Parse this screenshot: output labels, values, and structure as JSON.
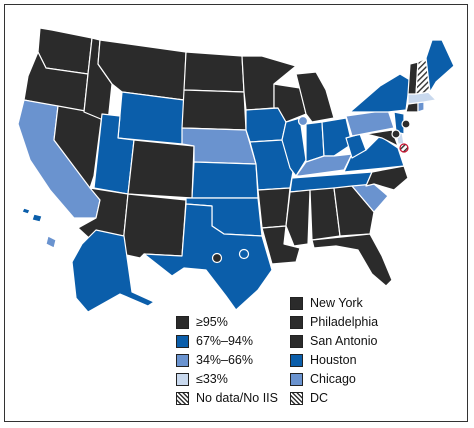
{
  "colors": {
    "ge95": "#2b2b2b",
    "c67_94": "#0b5eaa",
    "c34_66": "#6a93cf",
    "le33": "#c9d9ee",
    "nodata": "hatch",
    "border": "#ffffff"
  },
  "legend_left": [
    {
      "label": "≥95%",
      "color": "#2b2b2b",
      "icon": "dark-square-icon"
    },
    {
      "label": "67%–94%",
      "color": "#0b5eaa",
      "icon": "blue-square-icon"
    },
    {
      "label": "34%–66%",
      "color": "#6a93cf",
      "icon": "medium-blue-square-icon"
    },
    {
      "label": "≤33%",
      "color": "#c9d9ee",
      "icon": "light-blue-square-icon"
    },
    {
      "label": "No data/No IIS",
      "color": "hatch",
      "icon": "hatched-square-icon"
    }
  ],
  "legend_right": [
    {
      "label": "New York",
      "color": "#2b2b2b",
      "icon": "dark-square-icon"
    },
    {
      "label": "Philadelphia",
      "color": "#2b2b2b",
      "icon": "dark-square-icon"
    },
    {
      "label": "San Antonio",
      "color": "#2b2b2b",
      "icon": "dark-square-icon"
    },
    {
      "label": "Houston",
      "color": "#0b5eaa",
      "icon": "blue-square-icon"
    },
    {
      "label": "Chicago",
      "color": "#6a93cf",
      "icon": "medium-blue-square-icon"
    },
    {
      "label": "DC",
      "color": "hatch",
      "icon": "hatched-square-icon"
    }
  ]
}
